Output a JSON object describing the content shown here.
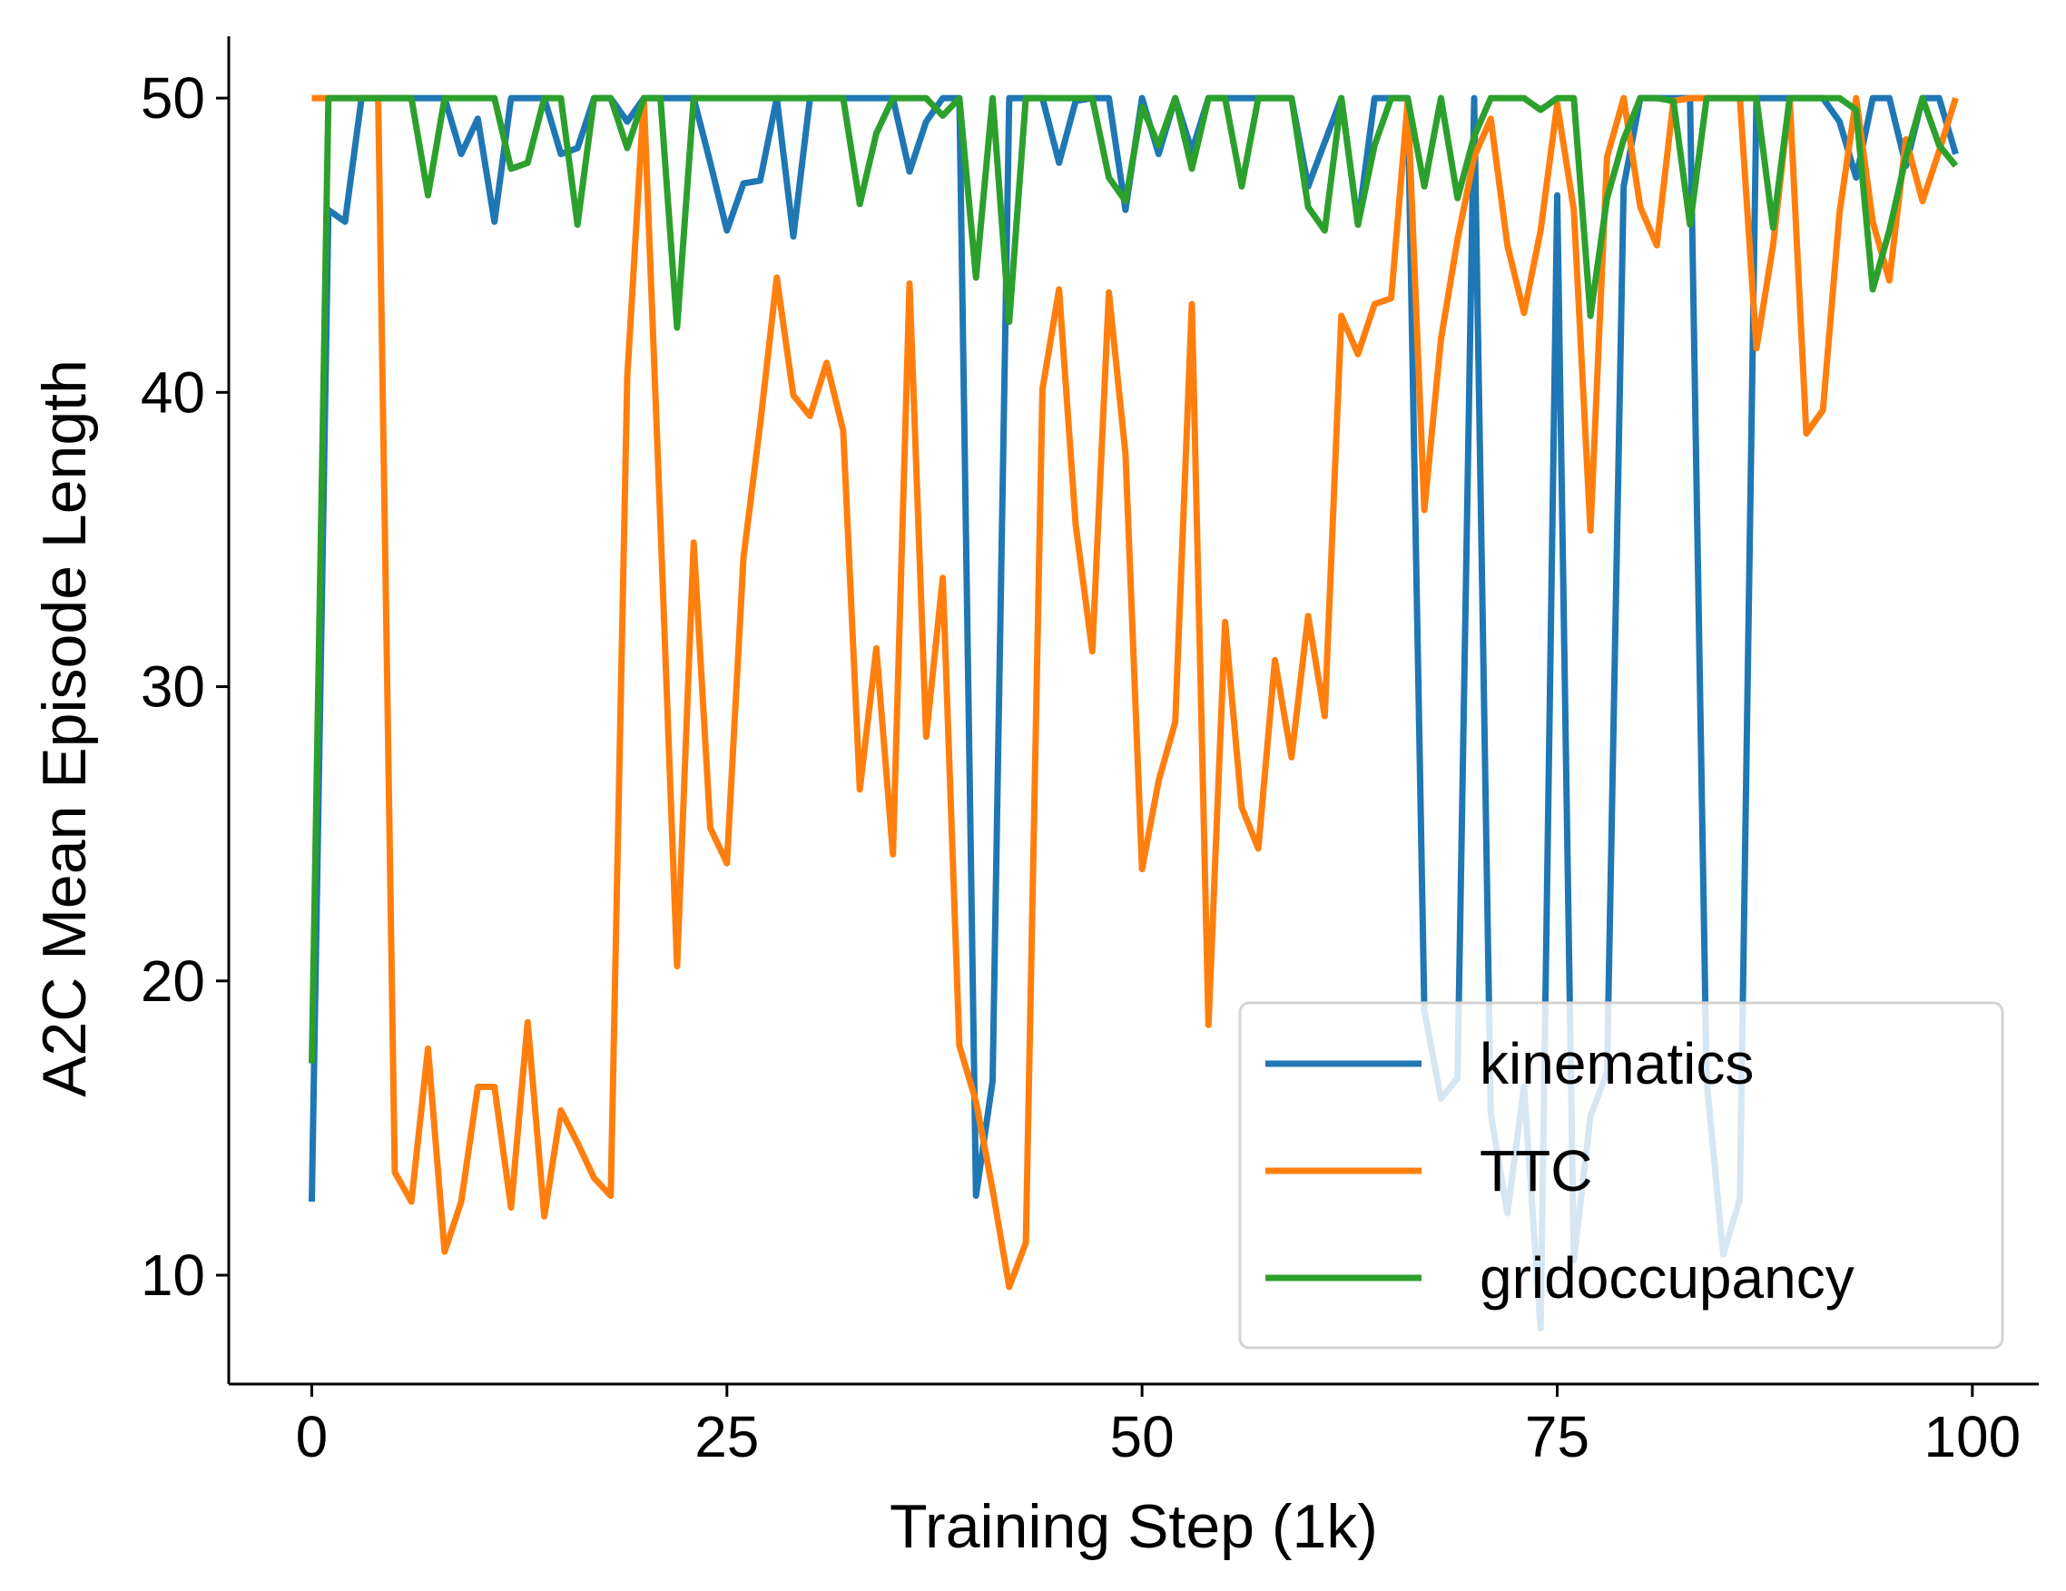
{
  "chart_data": {
    "type": "line",
    "title": "",
    "xlabel": "Training Step (1k)",
    "ylabel": "A2C Mean Episode Length",
    "xlim": [
      -5,
      104
    ],
    "ylim": [
      6.3,
      52.1
    ],
    "xticks": [
      0,
      25,
      50,
      75,
      100
    ],
    "yticks": [
      10,
      20,
      30,
      40,
      50
    ],
    "grid": false,
    "legend_position": "lower-right",
    "x": [
      0,
      1,
      2,
      3,
      4,
      5,
      6,
      7,
      8,
      9,
      10,
      11,
      12,
      13,
      14,
      15,
      16,
      17,
      18,
      19,
      20,
      21,
      22,
      23,
      24,
      25,
      26,
      27,
      28,
      29,
      30,
      31,
      32,
      33,
      34,
      35,
      36,
      37,
      38,
      39,
      40,
      41,
      42,
      43,
      44,
      45,
      46,
      47,
      48,
      49,
      50,
      51,
      52,
      53,
      54,
      55,
      56,
      57,
      58,
      59,
      60,
      61,
      62,
      63,
      64,
      65,
      66,
      67,
      68,
      69,
      70,
      71,
      72,
      73,
      74,
      75,
      76,
      77,
      78,
      79,
      80,
      81,
      82,
      83,
      84,
      85,
      86,
      87,
      88,
      89,
      90,
      91,
      92,
      93,
      94,
      95,
      96,
      97,
      98,
      99
    ],
    "series": [
      {
        "name": "kinematics",
        "color": "#1f77b4",
        "values": [
          12.5,
          46.2,
          45.8,
          50,
          50,
          50,
          50,
          50,
          50,
          48.1,
          49.3,
          45.8,
          50,
          50,
          50,
          48.1,
          48.3,
          50,
          50,
          49.2,
          50,
          50,
          50,
          50,
          47.8,
          45.5,
          47.1,
          47.2,
          50,
          45.3,
          50,
          50,
          50,
          50,
          50,
          50,
          47.5,
          49.2,
          50,
          50,
          12.7,
          16.6,
          50,
          50,
          50,
          47.8,
          49.9,
          50,
          50,
          46.2,
          50,
          48.1,
          50,
          48.2,
          50,
          50,
          50,
          50,
          50,
          50,
          47,
          48.5,
          50,
          45.7,
          50,
          50,
          50,
          19,
          16,
          16.7,
          50,
          15.5,
          12.1,
          16.4,
          8.2,
          46.7,
          10.5,
          15.4,
          16.9,
          47,
          50,
          50,
          50,
          50,
          16.6,
          10.7,
          12.6,
          50,
          50,
          50,
          50,
          50,
          49.2,
          47.3,
          50,
          50,
          47.7,
          50,
          50,
          48.1
        ]
      },
      {
        "name": "TTC",
        "color": "#ff7f0e",
        "values": [
          50,
          50,
          50,
          50,
          50,
          13.5,
          12.5,
          17.7,
          10.8,
          12.5,
          16.4,
          16.4,
          12.3,
          18.6,
          12,
          15.6,
          14.5,
          13.3,
          12.7,
          40.5,
          50,
          35.5,
          20.5,
          34.9,
          25.2,
          24,
          34.4,
          38.9,
          43.9,
          39.9,
          39.2,
          41,
          38.7,
          26.5,
          31.3,
          24.3,
          43.7,
          28.3,
          33.7,
          17.8,
          15.9,
          12.9,
          9.6,
          11.1,
          40.1,
          43.5,
          35.5,
          31.2,
          43.4,
          37.9,
          23.8,
          26.8,
          28.8,
          43,
          18.5,
          32.2,
          25.9,
          24.5,
          30.9,
          27.6,
          32.4,
          29,
          42.6,
          41.3,
          43,
          43.2,
          49.9,
          36,
          41.8,
          45.2,
          48,
          49.3,
          45,
          42.7,
          45.5,
          49.8,
          46.2,
          35.3,
          48,
          50,
          46.3,
          45,
          49.9,
          50,
          50,
          50,
          50,
          41.5,
          45,
          50,
          38.6,
          39.4,
          46.1,
          50,
          45.8,
          43.8,
          48.6,
          46.5,
          48.2,
          50
        ]
      },
      {
        "name": "gridoccupancy",
        "color": "#2ca02c",
        "values": [
          17.2,
          50,
          50,
          50,
          50,
          50,
          50,
          46.7,
          50,
          50,
          50,
          50,
          47.6,
          47.8,
          50,
          50,
          45.7,
          50,
          50,
          48.3,
          50,
          50,
          42.2,
          50,
          50,
          50,
          50,
          50,
          50,
          50,
          50,
          50,
          50,
          46.4,
          48.8,
          50,
          50,
          50,
          49.4,
          50,
          43.9,
          50,
          42.4,
          50,
          50,
          50,
          50,
          50,
          47.3,
          46.5,
          49.7,
          48.4,
          50,
          47.6,
          50,
          50,
          47,
          50,
          50,
          50,
          46.3,
          45.5,
          50,
          45.7,
          48.4,
          50,
          50,
          47,
          50,
          46.6,
          48.7,
          50,
          50,
          50,
          49.6,
          50,
          50,
          42.6,
          46.6,
          48.6,
          50,
          50,
          49.9,
          45.7,
          50,
          50,
          50,
          50,
          45.6,
          50,
          50,
          50,
          50,
          49.6,
          43.5,
          45.5,
          48,
          50,
          48.4,
          47.7
        ]
      }
    ]
  }
}
